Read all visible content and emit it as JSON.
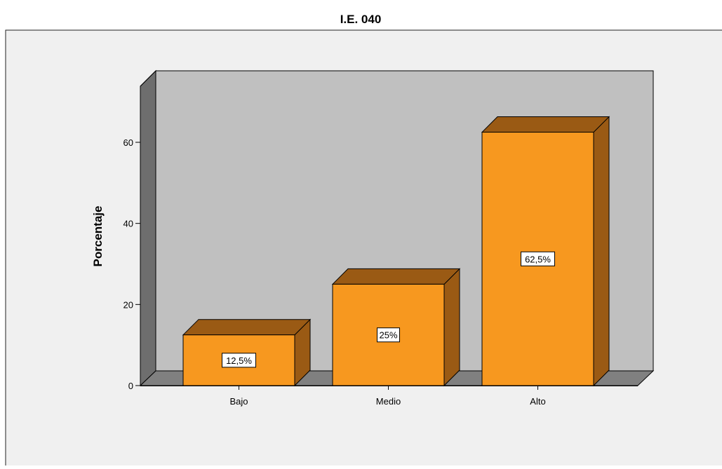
{
  "chart_data": {
    "type": "bar",
    "title": "I.E. 040",
    "xlabel": "",
    "ylabel": "Porcentaje",
    "categories": [
      "Bajo",
      "Medio",
      "Alto"
    ],
    "values": [
      12.5,
      25,
      62.5
    ],
    "data_labels": [
      "12,5%",
      "25%",
      "62,5%"
    ],
    "yticks": [
      0,
      20,
      40,
      60
    ],
    "ylim": [
      0,
      70
    ],
    "grid": false,
    "legend": "none",
    "style": "3d"
  },
  "colors": {
    "bar_front": "#F7981F",
    "bar_top": "#9A5A14",
    "bar_side": "#9A5A14",
    "back_wall": "#C0C0C0",
    "side_wall": "#6E6E6E",
    "floor": "#808080",
    "outer_background": "#F0F0F0",
    "page_background": "#FFFFFF"
  }
}
